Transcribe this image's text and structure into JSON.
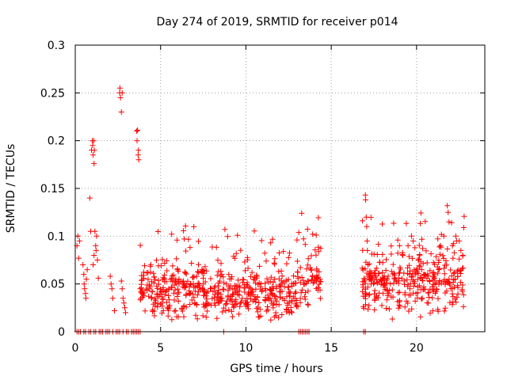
{
  "chart_data": {
    "type": "scatter",
    "title": "Day 274 of 2019, SRMTID for receiver p014",
    "xlabel": "GPS time / hours",
    "ylabel": "SRMTID / TECUs",
    "xlim": [
      0,
      24
    ],
    "ylim": [
      0,
      0.3
    ],
    "xticks": [
      0,
      5,
      10,
      15,
      20
    ],
    "xtick_labels": [
      "0",
      "5",
      "10",
      "15",
      "20"
    ],
    "yticks": [
      0,
      0.05,
      0.1,
      0.15,
      0.2,
      0.25,
      0.3
    ],
    "ytick_labels": [
      "0",
      "0.05",
      "0.1",
      "0.15",
      "0.2",
      "0.25",
      "0.3"
    ],
    "grid": true,
    "marker": "+",
    "series_color": "#ff0000",
    "series": [
      {
        "name": "SRMTID",
        "points": [
          [
            0.1,
            0.09
          ],
          [
            0.15,
            0.1
          ],
          [
            0.2,
            0.077
          ],
          [
            0.25,
            0.095
          ],
          [
            0.45,
            0.07
          ],
          [
            0.5,
            0.06
          ],
          [
            0.52,
            0.05
          ],
          [
            0.55,
            0.045
          ],
          [
            0.6,
            0.04
          ],
          [
            0.62,
            0.035
          ],
          [
            0.65,
            0.055
          ],
          [
            0.7,
            0.065
          ],
          [
            0.85,
            0.14
          ],
          [
            0.9,
            0.105
          ],
          [
            0.95,
            0.19
          ],
          [
            1.0,
            0.2
          ],
          [
            1.02,
            0.195
          ],
          [
            1.05,
            0.185
          ],
          [
            1.08,
            0.2
          ],
          [
            1.1,
            0.176
          ],
          [
            1.12,
            0.19
          ],
          [
            1.15,
            0.105
          ],
          [
            1.2,
            0.09
          ],
          [
            1.22,
            0.085
          ],
          [
            1.25,
            0.1
          ],
          [
            1.3,
            0.075
          ],
          [
            1.35,
            0.056
          ],
          [
            1.05,
            0.07
          ],
          [
            1.1,
            0.08
          ],
          [
            2.05,
            0.058
          ],
          [
            2.1,
            0.05
          ],
          [
            2.15,
            0.045
          ],
          [
            2.2,
            0.035
          ],
          [
            2.3,
            0.022
          ],
          [
            2.6,
            0.25
          ],
          [
            2.62,
            0.255
          ],
          [
            2.65,
            0.245
          ],
          [
            2.7,
            0.23
          ],
          [
            2.75,
            0.25
          ],
          [
            2.7,
            0.053
          ],
          [
            2.75,
            0.045
          ],
          [
            2.8,
            0.035
          ],
          [
            2.85,
            0.03
          ],
          [
            2.9,
            0.025
          ],
          [
            2.95,
            0.02
          ],
          [
            3.6,
            0.21
          ],
          [
            3.65,
            0.211
          ],
          [
            3.62,
            0.2
          ],
          [
            3.7,
            0.19
          ],
          [
            3.72,
            0.18
          ],
          [
            3.68,
            0.185
          ],
          [
            3.8,
            0.045
          ],
          [
            3.9,
            0.04
          ],
          [
            17.0,
            0.143
          ],
          [
            17.02,
            0.138
          ],
          [
            17.05,
            0.12
          ],
          [
            17.08,
            0.11
          ],
          [
            17.1,
            0.095
          ],
          [
            17.12,
            0.085
          ],
          [
            17.15,
            0.07
          ],
          [
            17.2,
            0.06
          ],
          [
            17.3,
            0.055
          ],
          [
            18.9,
            0.096
          ],
          [
            19.0,
            0.09
          ],
          [
            19.2,
            0.08
          ],
          [
            19.5,
            0.09
          ],
          [
            19.7,
            0.1
          ],
          [
            19.8,
            0.095
          ],
          [
            20.1,
            0.075
          ],
          [
            20.2,
            0.068
          ],
          [
            20.3,
            0.065
          ],
          [
            21.4,
            0.09
          ],
          [
            21.6,
            0.1
          ],
          [
            21.8,
            0.132
          ],
          [
            21.85,
            0.125
          ],
          [
            21.9,
            0.115
          ],
          [
            22.1,
            0.09
          ],
          [
            22.3,
            0.1
          ],
          [
            22.5,
            0.095
          ],
          [
            22.6,
            0.085
          ],
          [
            22.7,
            0.08
          ]
        ],
        "bands": [
          {
            "x": [
              3.8,
              8.3
            ],
            "center": 0.045,
            "spread": 0.025,
            "count": 260
          },
          {
            "x": [
              8.3,
              13.0
            ],
            "center": 0.04,
            "spread": 0.022,
            "count": 280
          },
          {
            "x": [
              13.0,
              14.4
            ],
            "center": 0.055,
            "spread": 0.028,
            "count": 70
          },
          {
            "x": [
              16.8,
              19.5
            ],
            "center": 0.05,
            "spread": 0.024,
            "count": 160
          },
          {
            "x": [
              19.5,
              22.8
            ],
            "center": 0.055,
            "spread": 0.027,
            "count": 190
          }
        ],
        "zero_points_x": [
          0.1,
          0.2,
          0.3,
          0.5,
          0.6,
          0.8,
          0.9,
          1.1,
          1.2,
          1.4,
          1.5,
          1.6,
          1.8,
          1.9,
          2.0,
          2.2,
          2.4,
          2.5,
          2.6,
          2.8,
          3.0,
          3.1,
          3.3,
          3.4,
          3.5,
          3.6,
          3.7,
          3.8,
          8.7,
          13.1,
          13.2,
          13.3,
          13.4,
          13.5,
          13.6,
          13.7,
          16.9,
          17.0
        ]
      }
    ]
  }
}
